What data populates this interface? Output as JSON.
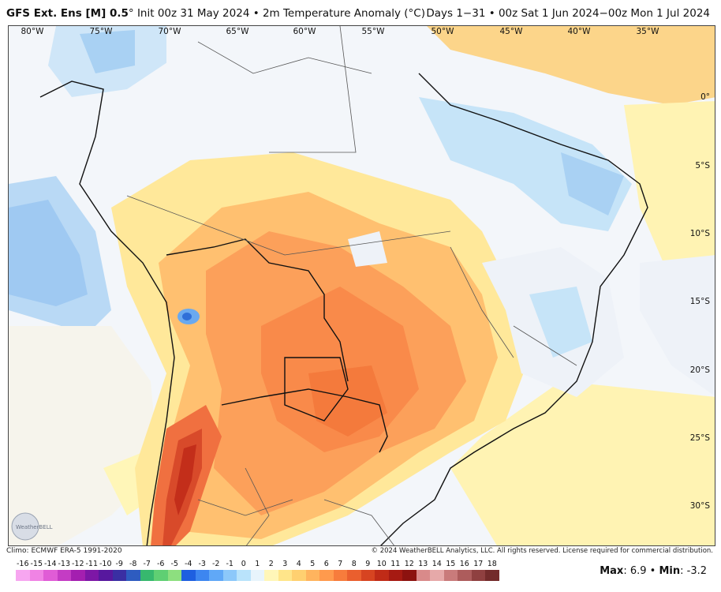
{
  "header": {
    "model": "GFS Ext. Ens [M] 0.5",
    "degree": "°",
    "init": " Init 00z 31 May 2024 • 2m Temperature Anomaly (°C)",
    "range": "Days 1−31 • 00z Sat 1 Jun 2024−00z Mon 1 Jul 2024"
  },
  "map": {
    "lon_labels": [
      "80°W",
      "75°W",
      "70°W",
      "65°W",
      "60°W",
      "55°W",
      "50°W",
      "45°W",
      "40°W",
      "35°W"
    ],
    "lat_labels": [
      "0°",
      "5°S",
      "10°S",
      "15°S",
      "20°S",
      "25°S",
      "30°S"
    ]
  },
  "footer": {
    "clim": "Climo: ECMWF ERA-5 1991-2020",
    "copyright": "© 2024 WeatherBELL Analytics, LLC. All rights reserved. License required for commercial distribution.",
    "logo_text": "WeatherBELL",
    "max_label": "Max",
    "max_value": "6.9",
    "min_label": "Min",
    "min_value": "-3.2",
    "sep": " • "
  },
  "colorbar": {
    "ticks": [
      "-16",
      "-15",
      "-14",
      "-13",
      "-12",
      "-11",
      "-10",
      "-9",
      "-8",
      "-7",
      "-6",
      "-5",
      "-4",
      "-3",
      "-2",
      "-1",
      "0",
      "1",
      "2",
      "3",
      "4",
      "5",
      "6",
      "7",
      "8",
      "9",
      "10",
      "11",
      "12",
      "13",
      "14",
      "15",
      "16",
      "17",
      "18"
    ],
    "colors": [
      "#f7a6f0",
      "#f083e4",
      "#e05cd6",
      "#c43cc4",
      "#a41fb0",
      "#7d17a6",
      "#57189e",
      "#3a2fa3",
      "#2e5cc0",
      "#37b86e",
      "#5fcf73",
      "#8ddf7f",
      "#1e5fe0",
      "#3d86f0",
      "#60a8f7",
      "#8cc8fa",
      "#b9e3fb",
      "#e8f4fc",
      "#fff6b8",
      "#ffe58a",
      "#ffd070",
      "#ffb45e",
      "#ff9a4d",
      "#f77c3c",
      "#ea5f2e",
      "#d74421",
      "#c02b17",
      "#a61a12",
      "#8c120f",
      "#d98a8a",
      "#e6a9a9",
      "#c97b7b",
      "#ad5c5c",
      "#8f4040",
      "#732b2b"
    ]
  }
}
